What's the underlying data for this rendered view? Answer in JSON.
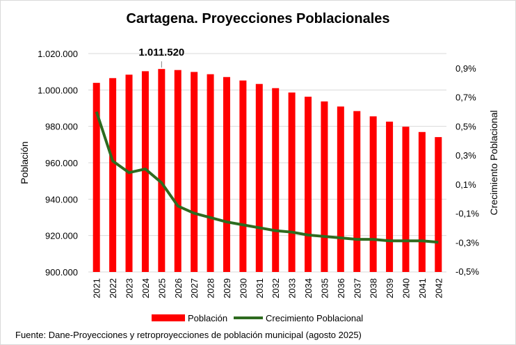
{
  "chart_data": {
    "type": "bar+line",
    "title": "Cartagena. Proyecciones Poblacionales",
    "categories": [
      "2021",
      "2022",
      "2023",
      "2024",
      "2025",
      "2026",
      "2027",
      "2028",
      "2029",
      "2030",
      "2031",
      "2032",
      "2033",
      "2034",
      "2035",
      "2036",
      "2037",
      "2038",
      "2039",
      "2040",
      "2041",
      "2042"
    ],
    "series": [
      {
        "name": "Población",
        "type": "bar",
        "axis": "left",
        "color": "#ff0000",
        "values": [
          1003900,
          1006500,
          1008400,
          1010300,
          1011520,
          1010950,
          1009900,
          1008650,
          1007100,
          1005200,
          1003300,
          1001000,
          998600,
          996300,
          993700,
          990900,
          988400,
          985500,
          982600,
          979800,
          976900,
          974100
        ]
      },
      {
        "name": "Crecimiento Poblacional",
        "type": "line",
        "axis": "right",
        "color": "#2e6b1f",
        "values": [
          0.6,
          0.26,
          0.18,
          0.205,
          0.11,
          -0.05,
          -0.1,
          -0.13,
          -0.16,
          -0.18,
          -0.2,
          -0.22,
          -0.23,
          -0.25,
          -0.26,
          -0.27,
          -0.28,
          -0.28,
          -0.29,
          -0.29,
          -0.29,
          -0.3
        ]
      }
    ],
    "ylabel": "Población",
    "y2label": "Crecimiento Poblacional",
    "ylim": [
      900000,
      1020000
    ],
    "y_ticks": [
      "900.000",
      "920.000",
      "940.000",
      "960.000",
      "980.000",
      "1.000.000",
      "1.020.000"
    ],
    "y2lim": [
      -0.5,
      0.9
    ],
    "y2_ticks": [
      "-0,5%",
      "-0,3%",
      "-0,1%",
      "0,1%",
      "0,3%",
      "0,5%",
      "0,7%",
      "0,9%"
    ],
    "annotation": {
      "label": "1.011.520",
      "category": "2025"
    },
    "grid": true,
    "legend": "bottom",
    "source": "Fuente: Dane-Proyecciones y retroproyecciones de población municipal (agosto 2025)"
  }
}
